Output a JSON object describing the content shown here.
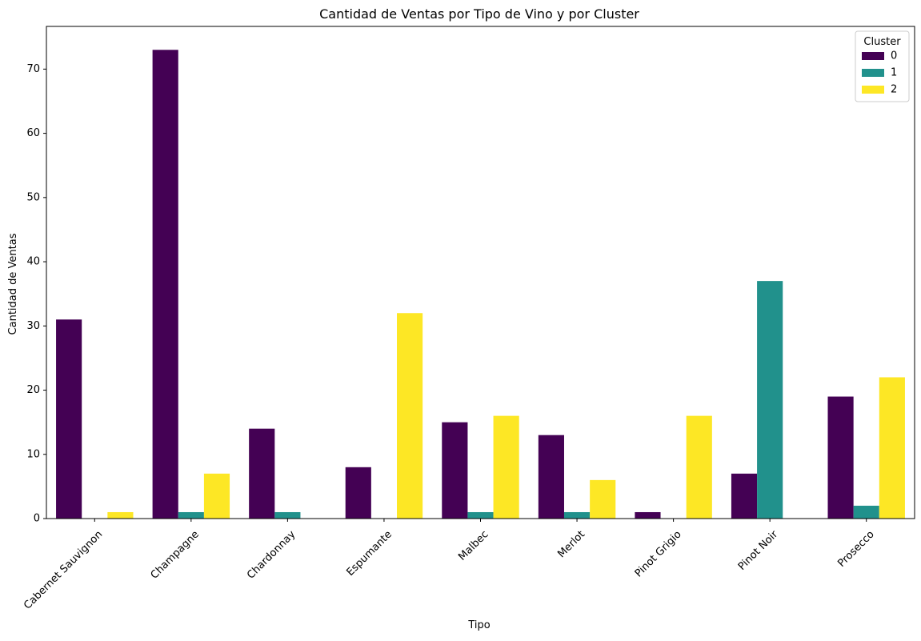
{
  "chart_data": {
    "type": "bar",
    "title": "Cantidad de Ventas por Tipo de Vino y por Cluster",
    "xlabel": "Tipo",
    "ylabel": "Cantidad de Ventas",
    "categories": [
      "Cabernet Sauvignon",
      "Champagne",
      "Chardonnay",
      "Espumante",
      "Malbec",
      "Merlot",
      "Pinot Grigio",
      "Pinot Noir",
      "Prosecco"
    ],
    "series": [
      {
        "name": "0",
        "color": "#440154",
        "values": [
          31,
          73,
          14,
          8,
          15,
          13,
          1,
          7,
          19
        ]
      },
      {
        "name": "1",
        "color": "#21918c",
        "values": [
          null,
          1,
          1,
          null,
          1,
          1,
          null,
          37,
          2
        ]
      },
      {
        "name": "2",
        "color": "#fde725",
        "values": [
          1,
          7,
          null,
          32,
          16,
          6,
          16,
          null,
          22
        ]
      }
    ],
    "ylim": [
      0,
      76.65
    ],
    "yticks": [
      0,
      10,
      20,
      30,
      40,
      50,
      60,
      70
    ],
    "grid": false,
    "legend": {
      "title": "Cluster",
      "placement": "top-right"
    }
  }
}
